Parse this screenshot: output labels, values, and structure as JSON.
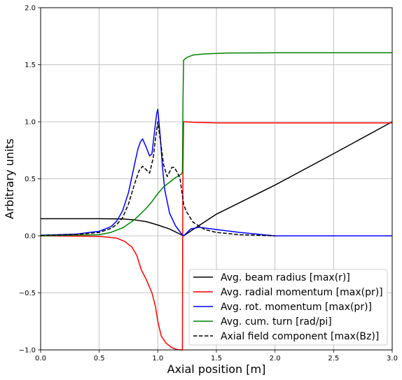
{
  "chart_data": {
    "type": "line",
    "xlabel": "Axial position [m]",
    "ylabel": "Arbitrary units",
    "xlim": [
      0.0,
      3.0
    ],
    "ylim": [
      -1.0,
      2.0
    ],
    "x_ticks": [
      0.0,
      0.5,
      1.0,
      1.5,
      2.0,
      2.5,
      3.0
    ],
    "y_ticks": [
      -1.0,
      -0.5,
      0.0,
      0.5,
      1.0,
      1.5,
      2.0
    ],
    "x_tick_labels": [
      "0.0",
      "0.5",
      "1.0",
      "1.5",
      "2.0",
      "2.5",
      "3.0"
    ],
    "y_tick_labels": [
      "−1.0",
      "−0.5",
      "0.0",
      "0.5",
      "1.0",
      "1.5",
      "2.0"
    ],
    "grid": true,
    "legend_position": "lower-right",
    "series": [
      {
        "name": "Avg. beam radius [max(r)]",
        "color": "#000000",
        "dash": "solid",
        "x": [
          0.0,
          0.5,
          0.7,
          0.8,
          0.9,
          1.0,
          1.1,
          1.15,
          1.2,
          1.22,
          1.3,
          1.5,
          2.0,
          2.5,
          3.0
        ],
        "y": [
          0.15,
          0.15,
          0.148,
          0.14,
          0.125,
          0.095,
          0.06,
          0.035,
          0.01,
          0.0,
          0.055,
          0.19,
          0.445,
          0.72,
          1.0
        ]
      },
      {
        "name": "Avg. radial momentum [max(pr)]",
        "color": "#ff0000",
        "dash": "solid",
        "x": [
          0.0,
          0.5,
          0.65,
          0.72,
          0.78,
          0.82,
          0.86,
          0.9,
          0.95,
          0.98,
          1.0,
          1.03,
          1.07,
          1.12,
          1.16,
          1.19,
          1.21,
          1.212,
          1.215,
          1.22,
          1.23,
          1.3,
          1.5,
          2.0,
          3.0
        ],
        "y": [
          0.0,
          -0.005,
          -0.02,
          -0.05,
          -0.1,
          -0.17,
          -0.3,
          -0.38,
          -0.5,
          -0.62,
          -0.75,
          -0.88,
          -0.94,
          -0.98,
          -0.995,
          -1.0,
          -1.0,
          0.0,
          0.6,
          1.0,
          1.0,
          0.995,
          0.99,
          0.99,
          0.99
        ]
      },
      {
        "name": "Avg. rot. momentum [max(pr)]",
        "color": "#0000ff",
        "dash": "solid",
        "x": [
          0.0,
          0.3,
          0.5,
          0.6,
          0.65,
          0.7,
          0.75,
          0.8,
          0.83,
          0.85,
          0.87,
          0.9,
          0.93,
          0.95,
          0.97,
          0.99,
          1.0,
          1.02,
          1.04,
          1.06,
          1.1,
          1.15,
          1.2,
          1.22,
          1.28,
          1.35,
          1.5,
          1.7,
          2.0,
          2.5,
          3.0
        ],
        "y": [
          0.005,
          0.015,
          0.04,
          0.08,
          0.13,
          0.22,
          0.38,
          0.62,
          0.76,
          0.82,
          0.85,
          0.78,
          0.7,
          0.72,
          0.9,
          1.07,
          1.11,
          0.88,
          0.6,
          0.4,
          0.2,
          0.09,
          0.02,
          0.0,
          0.06,
          0.075,
          0.055,
          0.03,
          0.0,
          0.0,
          0.0
        ]
      },
      {
        "name": "Avg. cum. turn [rad/pi]",
        "color": "#008000",
        "dash": "solid",
        "x": [
          0.0,
          0.5,
          0.6,
          0.7,
          0.8,
          0.85,
          0.9,
          0.95,
          1.0,
          1.05,
          1.1,
          1.15,
          1.2,
          1.21,
          1.215,
          1.22,
          1.25,
          1.3,
          1.4,
          1.6,
          2.0,
          3.0
        ],
        "y": [
          0.0,
          0.01,
          0.03,
          0.07,
          0.14,
          0.19,
          0.24,
          0.3,
          0.37,
          0.43,
          0.47,
          0.51,
          0.54,
          0.56,
          1.2,
          1.54,
          1.565,
          1.585,
          1.595,
          1.603,
          1.605,
          1.605
        ]
      },
      {
        "name": "Axial field component [max(Bz)]",
        "color": "#000000",
        "dash": "dashed",
        "x": [
          0.0,
          0.3,
          0.5,
          0.6,
          0.65,
          0.7,
          0.75,
          0.8,
          0.84,
          0.87,
          0.9,
          0.93,
          0.96,
          0.98,
          1.0,
          1.02,
          1.05,
          1.08,
          1.1,
          1.12,
          1.14,
          1.17,
          1.19,
          1.21,
          1.22,
          1.24,
          1.3,
          1.4,
          1.5,
          1.7,
          2.0
        ],
        "y": [
          0.005,
          0.012,
          0.03,
          0.065,
          0.1,
          0.16,
          0.28,
          0.45,
          0.57,
          0.61,
          0.58,
          0.55,
          0.68,
          0.85,
          1.0,
          0.85,
          0.62,
          0.52,
          0.56,
          0.6,
          0.6,
          0.55,
          0.5,
          0.35,
          0.28,
          0.22,
          0.12,
          0.055,
          0.03,
          0.01,
          0.0
        ]
      }
    ]
  }
}
